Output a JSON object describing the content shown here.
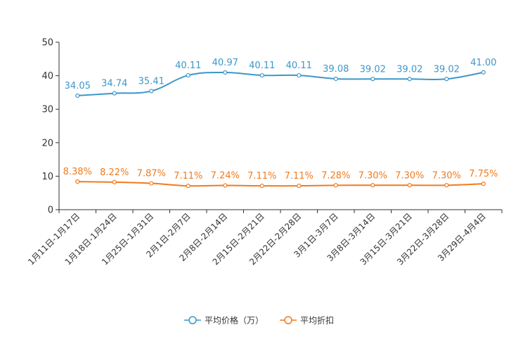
{
  "chart_data": {
    "type": "line",
    "categories": [
      "1月11日-1月17日",
      "1月18日-1月24日",
      "1月25日-1月31日",
      "2月1日-2月7日",
      "2月8日-2月14日",
      "2月15日-2月21日",
      "2月22日-2月28日",
      "3月1日-3月7日",
      "3月8日-3月14日",
      "3月15日-3月21日",
      "3月22日-3月28日",
      "3月29日-4月4日"
    ],
    "series": [
      {
        "name": "平均价格（万）",
        "color": "#3c97c9",
        "values": [
          34.05,
          34.74,
          35.41,
          40.11,
          40.97,
          40.11,
          40.11,
          39.08,
          39.02,
          39.02,
          39.02,
          41.0
        ],
        "labels": [
          "34.05",
          "34.74",
          "35.41",
          "40.11",
          "40.97",
          "40.11",
          "40.11",
          "39.08",
          "39.02",
          "39.02",
          "39.02",
          "41.00"
        ]
      },
      {
        "name": "平均折扣",
        "color": "#f07b1e",
        "values": [
          8.38,
          8.22,
          7.87,
          7.11,
          7.24,
          7.11,
          7.11,
          7.28,
          7.3,
          7.3,
          7.3,
          7.75
        ],
        "labels": [
          "8.38%",
          "8.22%",
          "7.87%",
          "7.11%",
          "7.24%",
          "7.11%",
          "7.11%",
          "7.28%",
          "7.30%",
          "7.30%",
          "7.30%",
          "7.75%"
        ]
      }
    ],
    "ylim": [
      0,
      50
    ],
    "yticks": [
      "0",
      "10",
      "20",
      "30",
      "40",
      "50"
    ],
    "title": "",
    "xlabel": "",
    "ylabel": "",
    "grid": false,
    "legend_position": "bottom-center"
  }
}
